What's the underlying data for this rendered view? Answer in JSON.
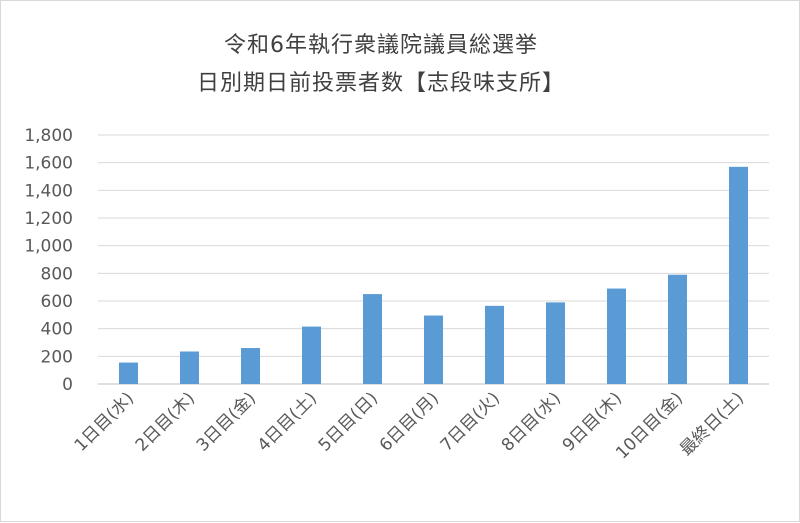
{
  "chart_data": {
    "type": "bar",
    "title": "令和6年執行衆議院議員総選挙",
    "subtitle": "日別期日前投票者数【志段味支所】",
    "categories": [
      "1日目(水)",
      "2日目(木)",
      "3日目(金)",
      "4日目(土)",
      "5日目(日)",
      "6日目(月)",
      "7日目(火)",
      "8日目(水)",
      "9日目(木)",
      "10日目(金)",
      "最終日(土)"
    ],
    "values": [
      155,
      235,
      260,
      415,
      650,
      495,
      565,
      590,
      690,
      790,
      1570
    ],
    "ylim": [
      0,
      1800
    ],
    "yticks": [
      "0",
      "200",
      "400",
      "600",
      "800",
      "1,000",
      "1,200",
      "1,400",
      "1,600",
      "1,800"
    ],
    "grid": true,
    "legend": "none",
    "bar_color": "#5b9bd5",
    "grid_color": "#d9d9d9",
    "axis_color": "#bfbfbf"
  }
}
